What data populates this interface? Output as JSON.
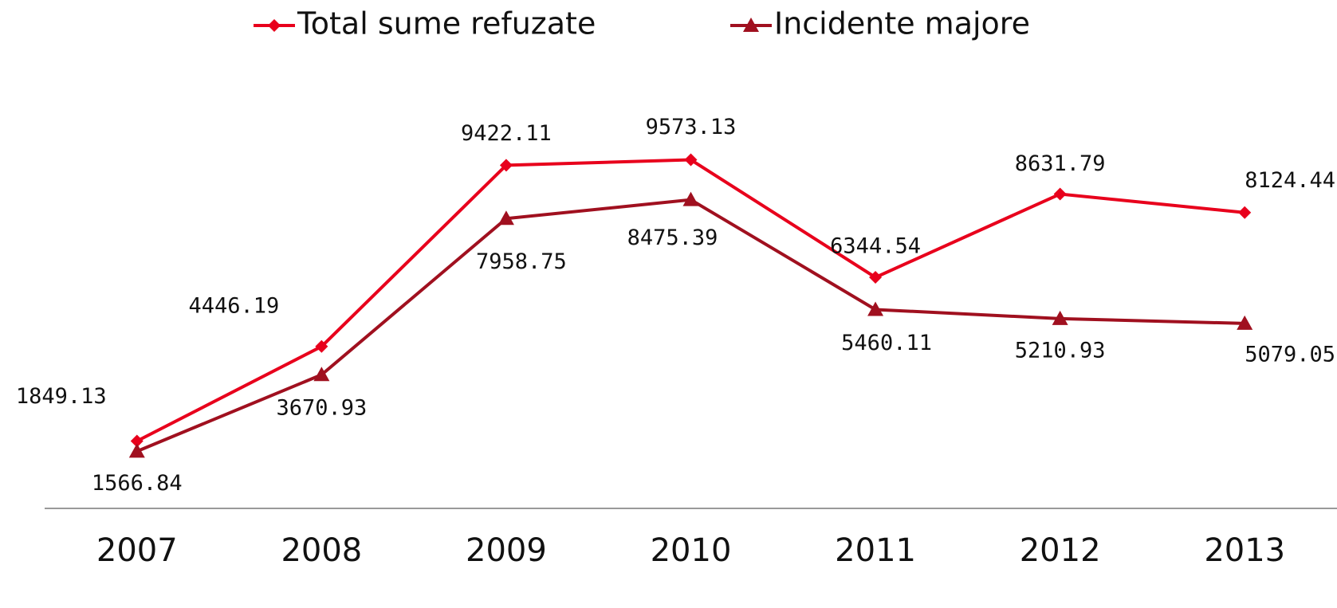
{
  "chart_data": {
    "type": "line",
    "categories": [
      "2007",
      "2008",
      "2009",
      "2010",
      "2011",
      "2012",
      "2013"
    ],
    "series": [
      {
        "name": "Total sume refuzate",
        "color": "#e8001c",
        "marker": "diamond",
        "values": [
          1849.13,
          4446.19,
          9422.11,
          9573.13,
          6344.54,
          8631.79,
          8124.44
        ]
      },
      {
        "name": "Incidente majore",
        "color": "#a0101f",
        "marker": "triangle",
        "values": [
          1566.84,
          3670.93,
          7958.75,
          8475.39,
          5460.11,
          5210.93,
          5079.05
        ]
      }
    ],
    "ylim": [
      0,
      10000
    ],
    "grid": false,
    "legend": "top"
  }
}
